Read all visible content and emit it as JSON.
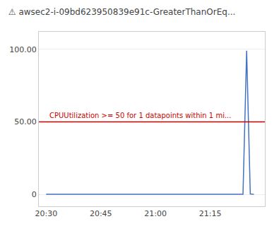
{
  "chart_data": {
    "type": "line",
    "title": "⚠ awsec2-i-09bd623950839e91c-GreaterThanOrEq...",
    "x": [
      0,
      5,
      10,
      15,
      20,
      25,
      30,
      35,
      40,
      45,
      50,
      54,
      55,
      56,
      57
    ],
    "values": [
      0.2,
      0.2,
      0.2,
      0.2,
      0.2,
      0.2,
      0.2,
      0.2,
      0.2,
      0.2,
      0.2,
      0.3,
      99.0,
      0.5,
      0.2
    ],
    "color": "#4472c4",
    "threshold": {
      "value": 50,
      "label": "CPUUtilization >= 50 for 1 datapoints within 1 mi...",
      "color": "#cc0000"
    },
    "xlim": [
      -2,
      60
    ],
    "xticks": [
      {
        "value": 0,
        "label": "20:30"
      },
      {
        "value": 15,
        "label": "20:45"
      },
      {
        "value": 30,
        "label": "21:00"
      },
      {
        "value": 45,
        "label": "21:15"
      }
    ],
    "ylim": [
      -8,
      112
    ],
    "yticks": [
      0,
      {
        "value": 50,
        "label": "50.00"
      },
      {
        "value": 100,
        "label": "100.00"
      }
    ],
    "grid": true
  }
}
